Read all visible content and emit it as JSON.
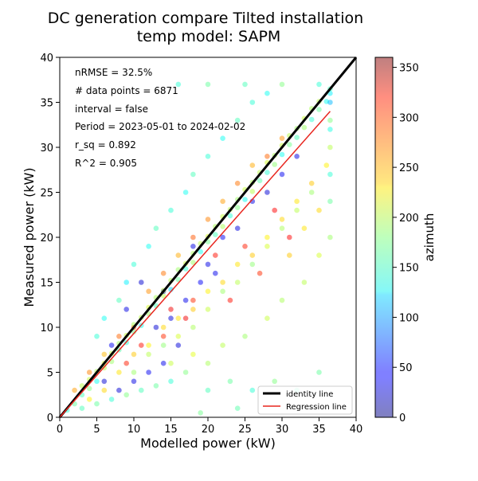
{
  "title_line1": "DC generation compare Tilted installation",
  "title_line2": "temp model: SAPM",
  "annotations": [
    "nRMSE = 32.5%",
    "# data points = 6871",
    "interval = false",
    "Period = 2023-05-01 to 2024-02-02",
    "r_sq = 0.892",
    "R^2 = 0.905"
  ],
  "legend": {
    "identity_label": "identity line",
    "regression_label": "Regression line"
  },
  "colorbar": {
    "label": "azimuth",
    "ticks": [
      0,
      50,
      100,
      150,
      200,
      250,
      300,
      350
    ],
    "range": [
      0,
      360
    ],
    "colormap": "jet",
    "alpha": 0.5
  },
  "colors": {
    "identity": "#000000",
    "regression": "#e8261f"
  },
  "chart_data": {
    "type": "scatter",
    "xlabel": "Modelled power (kW)",
    "ylabel": "Measured power (kW)",
    "xlim": [
      0,
      40
    ],
    "ylim": [
      0,
      40
    ],
    "xticks": [
      0,
      5,
      10,
      15,
      20,
      25,
      30,
      35,
      40
    ],
    "yticks": [
      0,
      5,
      10,
      15,
      20,
      25,
      30,
      35,
      40
    ],
    "identity_line": {
      "x": [
        0,
        40
      ],
      "y": [
        0,
        40
      ]
    },
    "regression_line": {
      "x": [
        0,
        36.5
      ],
      "y": [
        0,
        34
      ]
    },
    "points_sample": [
      [
        1,
        0.8,
        150
      ],
      [
        2,
        1.5,
        170
      ],
      [
        3,
        2.5,
        160
      ],
      [
        4,
        3.2,
        180
      ],
      [
        5,
        4,
        140
      ],
      [
        6,
        5.5,
        200
      ],
      [
        7,
        6.2,
        190
      ],
      [
        8,
        7.5,
        165
      ],
      [
        9,
        8.3,
        150
      ],
      [
        10,
        9.5,
        175
      ],
      [
        11,
        10.2,
        140
      ],
      [
        12,
        11.5,
        190
      ],
      [
        13,
        12.4,
        160
      ],
      [
        14,
        13.5,
        200
      ],
      [
        15,
        14.2,
        120
      ],
      [
        16,
        15.3,
        170
      ],
      [
        17,
        16.5,
        150
      ],
      [
        18,
        17.2,
        190
      ],
      [
        19,
        18.4,
        140
      ],
      [
        20,
        19.5,
        175
      ],
      [
        21,
        20.3,
        160
      ],
      [
        22,
        21.2,
        195
      ],
      [
        23,
        22.4,
        150
      ],
      [
        24,
        23.3,
        180
      ],
      [
        25,
        24.2,
        140
      ],
      [
        26,
        25.1,
        200
      ],
      [
        27,
        26.3,
        165
      ],
      [
        28,
        27.2,
        150
      ],
      [
        29,
        28.1,
        185
      ],
      [
        30,
        29.2,
        140
      ],
      [
        31,
        30.3,
        175
      ],
      [
        32,
        31.1,
        160
      ],
      [
        33,
        32.2,
        190
      ],
      [
        34,
        33.1,
        150
      ],
      [
        35,
        34.2,
        170
      ],
      [
        36,
        35.1,
        140
      ],
      [
        36.5,
        36.5,
        160
      ],
      [
        36.5,
        33,
        180
      ],
      [
        36.5,
        30,
        200
      ],
      [
        36.5,
        27,
        150
      ],
      [
        36.5,
        24,
        170
      ],
      [
        36.5,
        20,
        190
      ],
      [
        36.5,
        36,
        130
      ],
      [
        36.5,
        35,
        110
      ],
      [
        36.5,
        32,
        145
      ],
      [
        10,
        5,
        190
      ],
      [
        12,
        7,
        200
      ],
      [
        14,
        8,
        185
      ],
      [
        16,
        9,
        210
      ],
      [
        18,
        10,
        195
      ],
      [
        20,
        12,
        205
      ],
      [
        22,
        14,
        190
      ],
      [
        24,
        15,
        200
      ],
      [
        26,
        17,
        185
      ],
      [
        28,
        19,
        210
      ],
      [
        30,
        21,
        195
      ],
      [
        32,
        23,
        200
      ],
      [
        34,
        25,
        190
      ],
      [
        15,
        6,
        205
      ],
      [
        18,
        7,
        215
      ],
      [
        20,
        6,
        195
      ],
      [
        22,
        8,
        200
      ],
      [
        25,
        9,
        190
      ],
      [
        28,
        11,
        205
      ],
      [
        30,
        13,
        195
      ],
      [
        33,
        15,
        200
      ],
      [
        35,
        18,
        210
      ],
      [
        5,
        9,
        150
      ],
      [
        6,
        11,
        140
      ],
      [
        8,
        13,
        160
      ],
      [
        9,
        15,
        130
      ],
      [
        10,
        17,
        150
      ],
      [
        12,
        19,
        140
      ],
      [
        13,
        21,
        160
      ],
      [
        15,
        23,
        150
      ],
      [
        17,
        25,
        140
      ],
      [
        18,
        27,
        160
      ],
      [
        20,
        29,
        150
      ],
      [
        22,
        31,
        140
      ],
      [
        24,
        33,
        160
      ],
      [
        26,
        35,
        150
      ],
      [
        28,
        36,
        140
      ],
      [
        16,
        37,
        150
      ],
      [
        20,
        37,
        170
      ],
      [
        25,
        37,
        160
      ],
      [
        30,
        37,
        180
      ],
      [
        35,
        37,
        150
      ],
      [
        3,
        1,
        160
      ],
      [
        5,
        1.5,
        170
      ],
      [
        7,
        2,
        150
      ],
      [
        9,
        2.5,
        180
      ],
      [
        11,
        3,
        160
      ],
      [
        13,
        3.5,
        170
      ],
      [
        15,
        4,
        150
      ],
      [
        17,
        5,
        180
      ],
      [
        20,
        3,
        160
      ],
      [
        23,
        4,
        170
      ],
      [
        26,
        3,
        150
      ],
      [
        29,
        4,
        180
      ],
      [
        32,
        3,
        160
      ],
      [
        35,
        5,
        170
      ],
      [
        19,
        0.5,
        175
      ],
      [
        24,
        1,
        165
      ],
      [
        8,
        3,
        30
      ],
      [
        10,
        4,
        35
      ],
      [
        12,
        5,
        40
      ],
      [
        14,
        6,
        38
      ],
      [
        16,
        8,
        32
      ],
      [
        7,
        8,
        40
      ],
      [
        9,
        12,
        35
      ],
      [
        13,
        10,
        30
      ],
      [
        17,
        13,
        38
      ],
      [
        20,
        17,
        36
      ],
      [
        24,
        21,
        34
      ],
      [
        11,
        15,
        28
      ],
      [
        14,
        14,
        30
      ],
      [
        18,
        19,
        35
      ],
      [
        22,
        20,
        40
      ],
      [
        6,
        4,
        30
      ],
      [
        15,
        11,
        32
      ],
      [
        19,
        15,
        42
      ],
      [
        21,
        16,
        38
      ],
      [
        26,
        24,
        35
      ],
      [
        28,
        25,
        30
      ],
      [
        30,
        27,
        40
      ],
      [
        32,
        29,
        35
      ],
      [
        2,
        3,
        260
      ],
      [
        4,
        5,
        270
      ],
      [
        6,
        7,
        250
      ],
      [
        8,
        9,
        280
      ],
      [
        10,
        10,
        290
      ],
      [
        12,
        14,
        265
      ],
      [
        14,
        16,
        275
      ],
      [
        16,
        18,
        255
      ],
      [
        18,
        20,
        285
      ],
      [
        20,
        22,
        270
      ],
      [
        22,
        24,
        260
      ],
      [
        24,
        26,
        275
      ],
      [
        26,
        28,
        255
      ],
      [
        28,
        29,
        280
      ],
      [
        30,
        31,
        265
      ],
      [
        15,
        12,
        320
      ],
      [
        18,
        13,
        300
      ],
      [
        21,
        18,
        310
      ],
      [
        25,
        19,
        305
      ],
      [
        29,
        23,
        315
      ],
      [
        14,
        9,
        300
      ],
      [
        17,
        11,
        320
      ],
      [
        23,
        13,
        310
      ],
      [
        27,
        16,
        300
      ],
      [
        31,
        20,
        315
      ],
      [
        9,
        6,
        305
      ],
      [
        11,
        8,
        310
      ],
      [
        3,
        3.5,
        200
      ],
      [
        4,
        4.2,
        205
      ],
      [
        5,
        5.1,
        195
      ],
      [
        6,
        6,
        210
      ],
      [
        7,
        7.1,
        200
      ],
      [
        8,
        8.2,
        190
      ],
      [
        9,
        9.1,
        205
      ],
      [
        10,
        10.3,
        195
      ],
      [
        11,
        11.1,
        200
      ],
      [
        12,
        12.2,
        210
      ],
      [
        13,
        13.3,
        195
      ],
      [
        14,
        14.1,
        205
      ],
      [
        15,
        15.2,
        200
      ],
      [
        16,
        16.4,
        190
      ],
      [
        17,
        17.1,
        205
      ],
      [
        18,
        18.2,
        195
      ],
      [
        19,
        19.3,
        200
      ],
      [
        20,
        20.1,
        210
      ],
      [
        21,
        21.2,
        195
      ],
      [
        22,
        22.3,
        205
      ],
      [
        23,
        23.1,
        200
      ],
      [
        24,
        24.2,
        190
      ],
      [
        25,
        25.3,
        205
      ],
      [
        26,
        26.1,
        195
      ],
      [
        27,
        27.2,
        200
      ],
      [
        28,
        28.3,
        210
      ],
      [
        29,
        29.1,
        195
      ],
      [
        30,
        30.2,
        205
      ],
      [
        31,
        31.3,
        200
      ],
      [
        32,
        32.1,
        190
      ],
      [
        33,
        33.2,
        205
      ],
      [
        34,
        34.3,
        195
      ],
      [
        35,
        35.1,
        200
      ],
      [
        4,
        2,
        230
      ],
      [
        6,
        3,
        240
      ],
      [
        8,
        5,
        235
      ],
      [
        10,
        7,
        245
      ],
      [
        12,
        8,
        230
      ],
      [
        14,
        10,
        240
      ],
      [
        16,
        11,
        235
      ],
      [
        18,
        12,
        245
      ],
      [
        20,
        14,
        230
      ],
      [
        22,
        15,
        240
      ],
      [
        24,
        17,
        235
      ],
      [
        26,
        18,
        245
      ],
      [
        28,
        20,
        230
      ],
      [
        30,
        22,
        240
      ],
      [
        32,
        24,
        235
      ],
      [
        34,
        26,
        245
      ],
      [
        36,
        28,
        230
      ],
      [
        35,
        23,
        240
      ],
      [
        33,
        21,
        235
      ],
      [
        31,
        18,
        245
      ]
    ]
  }
}
